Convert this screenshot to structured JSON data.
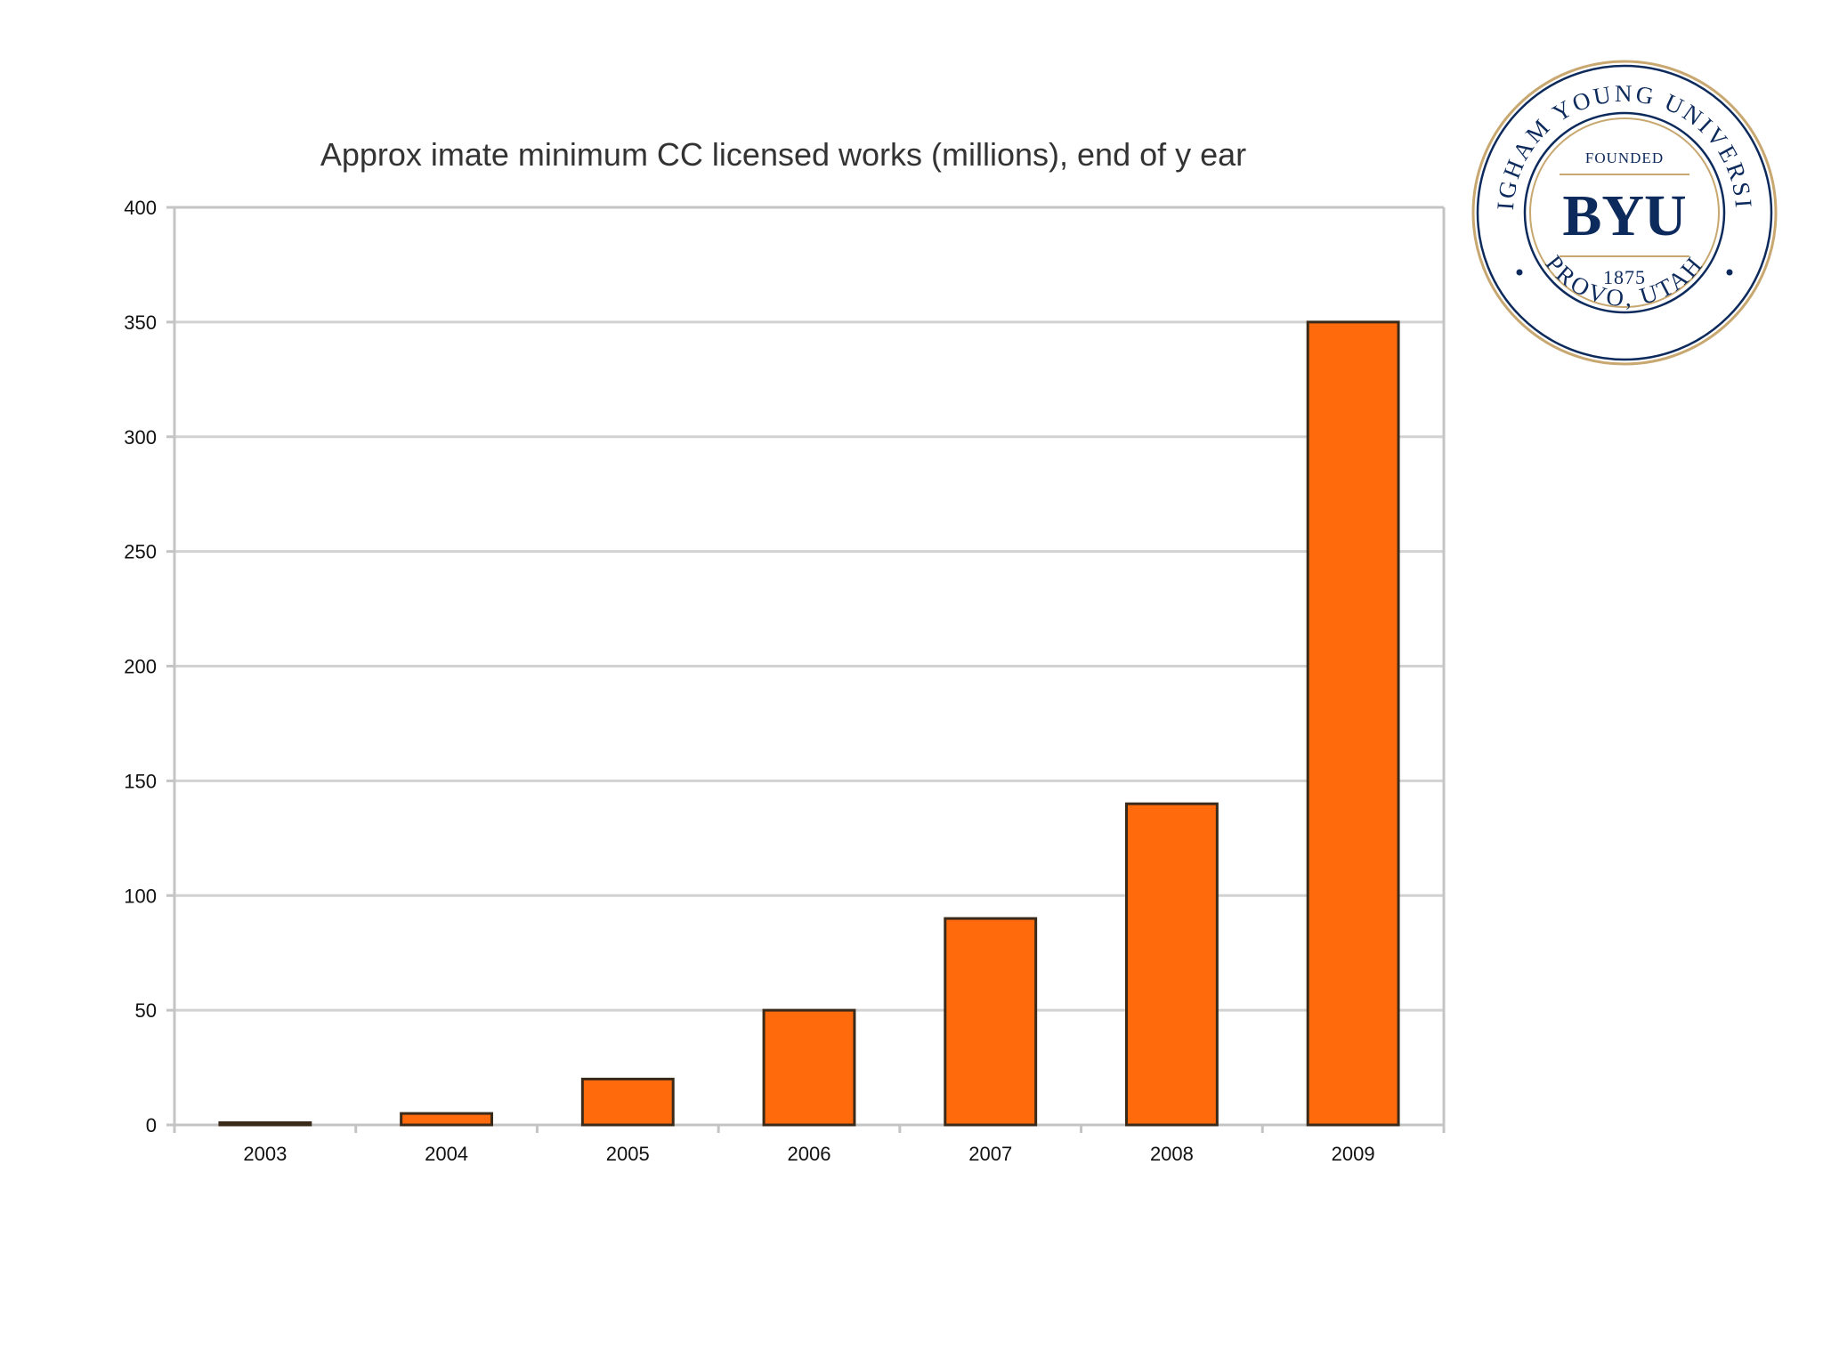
{
  "chart_data": {
    "type": "bar",
    "title": "Approx imate minimum CC licensed works (millions), end of y ear",
    "xlabel": "",
    "ylabel": "",
    "categories": [
      "2003",
      "2004",
      "2005",
      "2006",
      "2007",
      "2008",
      "2009"
    ],
    "values": [
      1,
      5,
      20,
      50,
      90,
      140,
      350
    ],
    "ylim": [
      0,
      400
    ],
    "yticks": [
      0,
      50,
      100,
      150,
      200,
      250,
      300,
      350,
      400
    ],
    "ytick_labels": [
      "0",
      "50",
      "100",
      "150",
      "200",
      "250",
      "300",
      "350",
      "400"
    ],
    "grid": true,
    "legend": "none",
    "bar_color": "#ff6a0d"
  },
  "logo": {
    "ring_text_top": "BRIGHAM YOUNG UNIVERSITY",
    "ring_text_bottom": "PROVO, UTAH",
    "founded_label": "FOUNDED",
    "monogram": "BYU",
    "year": "1875",
    "navy": "#0d2a5c",
    "gold": "#c8a870"
  }
}
